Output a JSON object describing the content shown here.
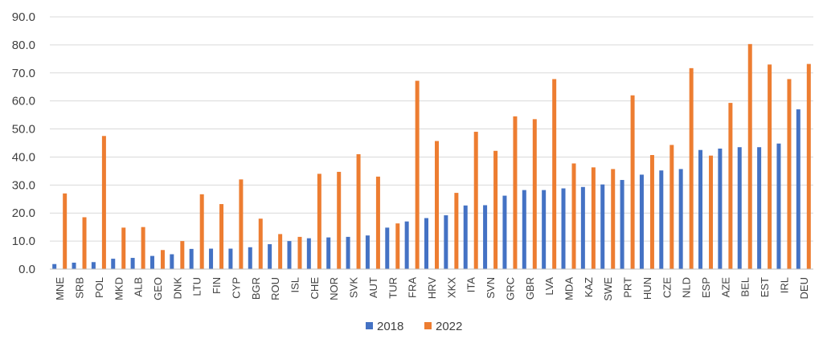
{
  "chart_data": {
    "type": "bar",
    "title": "",
    "xlabel": "",
    "ylabel": "",
    "ylim": [
      0,
      90
    ],
    "y_ticks": [
      "0.0",
      "10.0",
      "20.0",
      "30.0",
      "40.0",
      "50.0",
      "60.0",
      "70.0",
      "80.0",
      "90.0"
    ],
    "grid": true,
    "legend_position": "bottom",
    "categories": [
      "MNE",
      "SRB",
      "POL",
      "MKD",
      "ALB",
      "GEO",
      "DNK",
      "LTU",
      "FIN",
      "CYP",
      "BGR",
      "ROU",
      "ISL",
      "CHE",
      "NOR",
      "SVK",
      "AUT",
      "TUR",
      "FRA",
      "HRV",
      "XKX",
      "ITA",
      "SVN",
      "GRC",
      "GBR",
      "LVA",
      "MDA",
      "KAZ",
      "SWE",
      "PRT",
      "HUN",
      "CZE",
      "NLD",
      "ESP",
      "AZE",
      "BEL",
      "EST",
      "IRL",
      "DEU"
    ],
    "series": [
      {
        "name": "2018",
        "color": "#4472C4",
        "values": [
          1.8,
          2.3,
          2.5,
          3.7,
          4.0,
          4.7,
          5.3,
          7.2,
          7.3,
          7.3,
          7.8,
          8.9,
          10.0,
          11.0,
          11.3,
          11.5,
          12.0,
          14.8,
          17.0,
          18.2,
          19.2,
          22.7,
          22.8,
          26.2,
          28.2,
          28.2,
          28.8,
          29.3,
          30.2,
          31.8,
          33.7,
          35.2,
          35.7,
          42.5,
          43.0,
          43.5,
          43.5,
          44.8,
          57.0
        ]
      },
      {
        "name": "2022",
        "color": "#ED7D31",
        "values": [
          27.0,
          18.5,
          47.5,
          14.8,
          15.0,
          6.8,
          10.0,
          26.7,
          23.2,
          32.0,
          18.0,
          12.5,
          11.5,
          34.0,
          34.7,
          41.0,
          33.0,
          16.3,
          67.2,
          45.7,
          27.2,
          49.0,
          42.2,
          54.5,
          53.5,
          67.8,
          37.7,
          36.3,
          35.7,
          62.0,
          40.7,
          44.3,
          71.7,
          40.5,
          59.3,
          80.3,
          73.0,
          67.8,
          73.2
        ]
      }
    ]
  }
}
